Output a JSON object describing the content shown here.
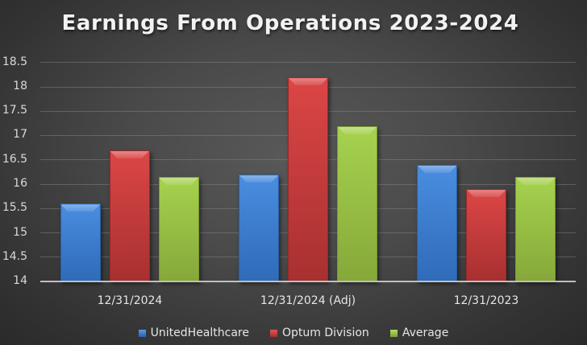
{
  "chart_data": {
    "type": "bar",
    "title": "Earnings From Operations 2023-2024",
    "xlabel": "",
    "ylabel": "",
    "categories": [
      "12/31/2024",
      "12/31/2024 (Adj)",
      "12/31/2023"
    ],
    "series": [
      {
        "name": "UnitedHealthcare",
        "color": "#3b7dd1",
        "values": [
          15.6,
          16.2,
          16.4
        ]
      },
      {
        "name": "Optum Division",
        "color": "#cc3b3b",
        "values": [
          16.7,
          18.2,
          15.9
        ]
      },
      {
        "name": "Average",
        "color": "#9bc84a",
        "values": [
          16.15,
          17.2,
          16.15
        ]
      }
    ],
    "ylim": [
      14,
      18.5
    ],
    "yticks": [
      "18.5",
      "18",
      "17.5",
      "17",
      "16.5",
      "16",
      "15.5",
      "15",
      "14.5",
      "14"
    ],
    "grid": true,
    "legend_position": "bottom"
  },
  "title": "Earnings From Operations 2023-2024",
  "yticks": [
    "18.5",
    "18",
    "17.5",
    "17",
    "16.5",
    "16",
    "15.5",
    "15",
    "14.5",
    "14"
  ],
  "categories": [
    "12/31/2024",
    "12/31/2024 (Adj)",
    "12/31/2023"
  ],
  "legend": [
    "UnitedHealthcare",
    "Optum Division",
    "Average"
  ]
}
